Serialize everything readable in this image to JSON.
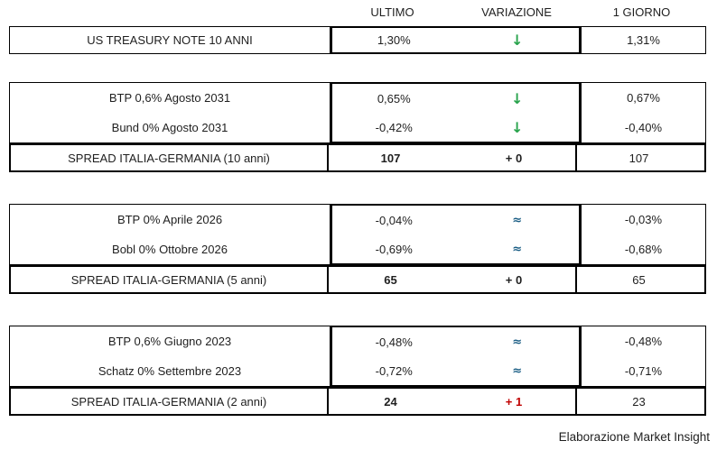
{
  "header": {
    "ultimo": "ULTIMO",
    "variazione": "VARIAZIONE",
    "giorno": "1 GIORNO"
  },
  "colors": {
    "green_down": "#28A34C",
    "blue_approx": "#1B5E85",
    "red_up": "#C00000",
    "text": "#1F1F1F",
    "border": "#000000"
  },
  "blocks": [
    {
      "rows": [
        {
          "label": "US TREASURY NOTE 10 ANNI",
          "ultimo": "1,30%",
          "symbol": "↓",
          "color": "#28A34C",
          "giorno": "1,31%"
        }
      ]
    },
    {
      "rows": [
        {
          "label": "BTP 0,6% Agosto 2031",
          "ultimo": "0,65%",
          "symbol": "↓",
          "color": "#28A34C",
          "giorno": "0,67%"
        },
        {
          "label": "Bund 0% Agosto 2031",
          "ultimo": "-0,42%",
          "symbol": "↓",
          "color": "#28A34C",
          "giorno": "-0,40%"
        }
      ],
      "spread": {
        "label": "SPREAD ITALIA-GERMANIA (10 anni)",
        "ultimo": "107",
        "variazione": "+ 0",
        "color": "#1F1F1F",
        "giorno": "107"
      }
    },
    {
      "rows": [
        {
          "label": "BTP 0% Aprile 2026",
          "ultimo": "-0,04%",
          "symbol": "≈",
          "color": "#1B5E85",
          "giorno": "-0,03%"
        },
        {
          "label": "Bobl 0% Ottobre 2026",
          "ultimo": "-0,69%",
          "symbol": "≈",
          "color": "#1B5E85",
          "giorno": "-0,68%"
        }
      ],
      "spread": {
        "label": "SPREAD ITALIA-GERMANIA (5 anni)",
        "ultimo": "65",
        "variazione": "+ 0",
        "color": "#1F1F1F",
        "giorno": "65"
      }
    },
    {
      "rows": [
        {
          "label": "BTP 0,6% Giugno 2023",
          "ultimo": "-0,48%",
          "symbol": "≈",
          "color": "#1B5E85",
          "giorno": "-0,48%"
        },
        {
          "label": "Schatz 0% Settembre 2023",
          "ultimo": "-0,72%",
          "symbol": "≈",
          "color": "#1B5E85",
          "giorno": "-0,71%"
        }
      ],
      "spread": {
        "label": "SPREAD ITALIA-GERMANIA (2 anni)",
        "ultimo": "24",
        "variazione": "+ 1",
        "color": "#C00000",
        "giorno": "23"
      }
    }
  ],
  "footer": {
    "credit": "Elaborazione Market Insight"
  },
  "chart_data": {
    "type": "table",
    "columns": [
      "",
      "ULTIMO",
      "VARIAZIONE",
      "1 GIORNO"
    ],
    "rows": [
      [
        "US TREASURY NOTE 10 ANNI",
        "1,30%",
        "↓ (down, green)",
        "1,31%"
      ],
      [
        "BTP 0,6% Agosto 2031",
        "0,65%",
        "↓ (down, green)",
        "0,67%"
      ],
      [
        "Bund 0% Agosto 2031",
        "-0,42%",
        "↓ (down, green)",
        "-0,40%"
      ],
      [
        "SPREAD ITALIA-GERMANIA (10 anni)",
        "107",
        "+ 0",
        "107"
      ],
      [
        "BTP 0% Aprile 2026",
        "-0,04%",
        "≈ (unchanged, blue)",
        "-0,03%"
      ],
      [
        "Bobl 0% Ottobre 2026",
        "-0,69%",
        "≈ (unchanged, blue)",
        "-0,68%"
      ],
      [
        "SPREAD ITALIA-GERMANIA (5 anni)",
        "65",
        "+ 0",
        "65"
      ],
      [
        "BTP 0,6% Giugno 2023",
        "-0,48%",
        "≈ (unchanged, blue)",
        "-0,48%"
      ],
      [
        "Schatz 0% Settembre 2023",
        "-0,72%",
        "≈ (unchanged, blue)",
        "-0,71%"
      ],
      [
        "SPREAD ITALIA-GERMANIA (2 anni)",
        "24",
        "+ 1 (red)",
        "23"
      ]
    ],
    "title": "",
    "annotation": "Elaborazione Market Insight"
  }
}
